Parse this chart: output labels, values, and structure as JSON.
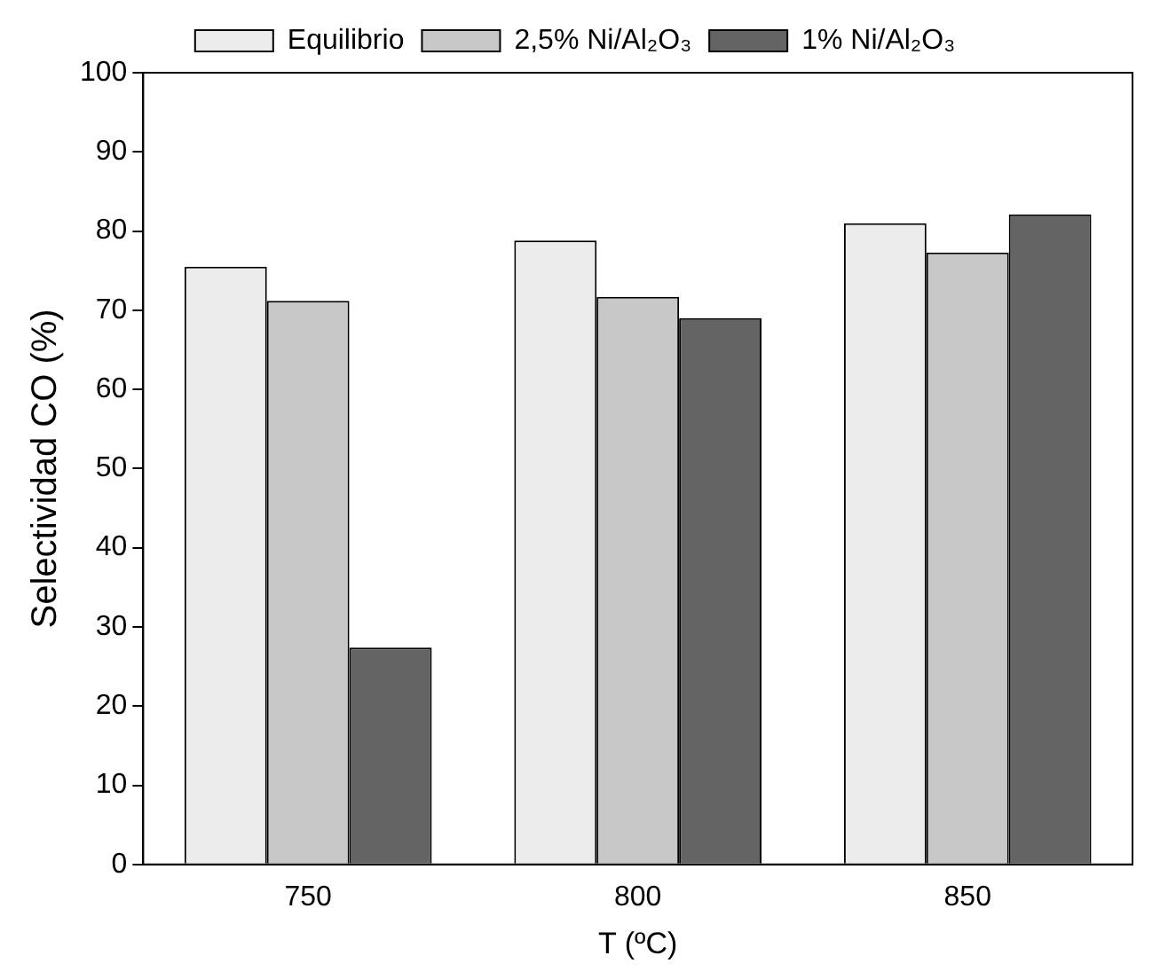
{
  "chart_data": {
    "type": "bar",
    "xlabel": "T (ºC)",
    "ylabel": "Selectividad CO (%)",
    "categories": [
      "750",
      "800",
      "850"
    ],
    "series": [
      {
        "name": "Equilibrio",
        "color": "#ececec",
        "values": [
          75.5,
          78.8,
          81.0
        ]
      },
      {
        "name": "2,5% Ni/Al₂O₃",
        "color": "#c8c8c8",
        "values": [
          71.2,
          71.7,
          77.3
        ]
      },
      {
        "name": "1% Ni/Al₂O₃",
        "color": "#646464",
        "values": [
          27.4,
          69.0,
          82.1
        ]
      }
    ],
    "ylim": [
      0,
      100
    ],
    "yticks": [
      0,
      10,
      20,
      30,
      40,
      50,
      60,
      70,
      80,
      90,
      100
    ],
    "grid": false,
    "legend": "top"
  }
}
